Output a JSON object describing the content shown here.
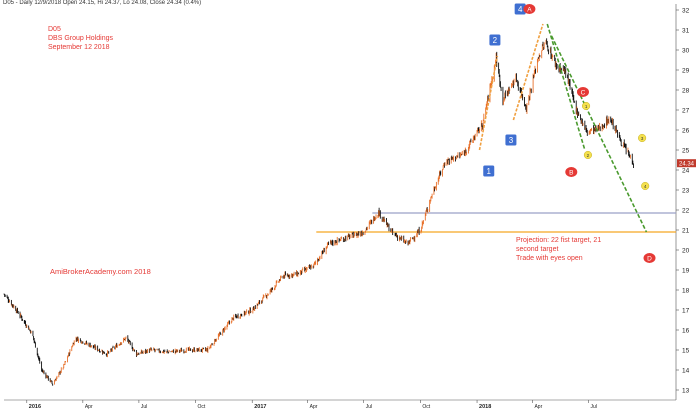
{
  "header": {
    "text": "D05 - Daily 12/9/2018 Open 24.15, Hi 24.37, Lo 24.08, Close 24.34 (0.4%)"
  },
  "title_block": {
    "line1": "D05",
    "line2": "DBS Group Holdings",
    "line3": "September 12 2018"
  },
  "watermark": "AmiBrokerAcademy.com  2018",
  "projection": {
    "line1": "Projection: 22 fist target, 21",
    "line2": "second target",
    "line3": "Trade with eyes open"
  },
  "last_price_badge": "24.34",
  "colors": {
    "up": "#e8702a",
    "down": "#111111",
    "marker_red": "#e53935",
    "marker_blue": "#3f6fd1",
    "marker_yellow": "#f4e04d",
    "orange_line": "#f5a623",
    "blue_line": "#9aa0c8",
    "green_dash": "#4a9a2e",
    "orange_dash": "#f0a040"
  },
  "chart_data": {
    "type": "candlestick",
    "y_axis": {
      "min": 12.5,
      "max": 32.3,
      "ticks": [
        13,
        14,
        15,
        16,
        17,
        18,
        19,
        20,
        21,
        22,
        23,
        24,
        25,
        26,
        27,
        28,
        29,
        30,
        31,
        32
      ],
      "position": "right"
    },
    "x_axis": {
      "range": [
        "2015-11-25",
        "2018-11-20"
      ],
      "ticks": [
        {
          "date": "2016-01-01",
          "label": "2016",
          "bold": true
        },
        {
          "date": "2016-04-01",
          "label": "Apr",
          "bold": false
        },
        {
          "date": "2016-07-01",
          "label": "Jul",
          "bold": false
        },
        {
          "date": "2016-10-01",
          "label": "Oct",
          "bold": false
        },
        {
          "date": "2017-01-01",
          "label": "2017",
          "bold": true
        },
        {
          "date": "2017-04-01",
          "label": "Apr",
          "bold": false
        },
        {
          "date": "2017-07-01",
          "label": "Jul",
          "bold": false
        },
        {
          "date": "2017-10-01",
          "label": "Oct",
          "bold": false
        },
        {
          "date": "2018-01-01",
          "label": "2018",
          "bold": true
        },
        {
          "date": "2018-04-01",
          "label": "Apr",
          "bold": false
        },
        {
          "date": "2018-07-01",
          "label": "Jul",
          "bold": false
        }
      ]
    },
    "price_path": [
      {
        "date": "2015-11-25",
        "close": 17.8
      },
      {
        "date": "2015-12-15",
        "close": 17.0
      },
      {
        "date": "2016-01-10",
        "close": 15.8
      },
      {
        "date": "2016-01-25",
        "close": 14.0
      },
      {
        "date": "2016-02-12",
        "close": 13.3
      },
      {
        "date": "2016-03-01",
        "close": 14.2
      },
      {
        "date": "2016-03-20",
        "close": 15.6
      },
      {
        "date": "2016-04-15",
        "close": 15.2
      },
      {
        "date": "2016-05-10",
        "close": 14.8
      },
      {
        "date": "2016-06-10",
        "close": 15.6
      },
      {
        "date": "2016-06-27",
        "close": 14.8
      },
      {
        "date": "2016-07-20",
        "close": 15.0
      },
      {
        "date": "2016-08-15",
        "close": 14.9
      },
      {
        "date": "2016-09-20",
        "close": 15.0
      },
      {
        "date": "2016-10-20",
        "close": 15.0
      },
      {
        "date": "2016-11-10",
        "close": 15.8
      },
      {
        "date": "2016-12-01",
        "close": 16.6
      },
      {
        "date": "2017-01-01",
        "close": 17.0
      },
      {
        "date": "2017-02-01",
        "close": 18.0
      },
      {
        "date": "2017-02-20",
        "close": 18.7
      },
      {
        "date": "2017-03-15",
        "close": 18.8
      },
      {
        "date": "2017-04-10",
        "close": 19.2
      },
      {
        "date": "2017-05-05",
        "close": 20.3
      },
      {
        "date": "2017-06-01",
        "close": 20.6
      },
      {
        "date": "2017-07-01",
        "close": 20.9
      },
      {
        "date": "2017-07-25",
        "close": 21.9
      },
      {
        "date": "2017-08-15",
        "close": 20.9
      },
      {
        "date": "2017-09-10",
        "close": 20.3
      },
      {
        "date": "2017-10-01",
        "close": 21.0
      },
      {
        "date": "2017-10-20",
        "close": 22.8
      },
      {
        "date": "2017-11-10",
        "close": 24.4
      },
      {
        "date": "2017-12-10",
        "close": 24.8
      },
      {
        "date": "2018-01-10",
        "close": 26.3
      },
      {
        "date": "2018-02-01",
        "close": 29.6
      },
      {
        "date": "2018-02-12",
        "close": 27.5
      },
      {
        "date": "2018-03-05",
        "close": 28.6
      },
      {
        "date": "2018-03-22",
        "close": 27.1
      },
      {
        "date": "2018-04-10",
        "close": 29.6
      },
      {
        "date": "2018-04-22",
        "close": 30.4
      },
      {
        "date": "2018-05-10",
        "close": 29.2
      },
      {
        "date": "2018-05-25",
        "close": 28.9
      },
      {
        "date": "2018-06-10",
        "close": 27.1
      },
      {
        "date": "2018-06-28",
        "close": 25.9
      },
      {
        "date": "2018-07-20",
        "close": 26.1
      },
      {
        "date": "2018-08-05",
        "close": 26.6
      },
      {
        "date": "2018-08-20",
        "close": 25.6
      },
      {
        "date": "2018-09-12",
        "close": 24.34
      }
    ],
    "horizontal_lines": [
      {
        "name": "orange-support",
        "value": 20.9,
        "start": "2017-04-15",
        "end": "2018-11-20"
      },
      {
        "name": "blue-resistance",
        "value": 21.85,
        "start": "2017-07-15",
        "end": "2018-11-20"
      }
    ],
    "trend_lines": [
      {
        "name": "orange-dash-1",
        "start": {
          "date": "2018-01-05",
          "value": 25.0
        },
        "end": {
          "date": "2018-02-03",
          "value": 29.7
        }
      },
      {
        "name": "orange-dash-2",
        "start": {
          "date": "2018-03-01",
          "value": 26.5
        },
        "end": {
          "date": "2018-04-18",
          "value": 31.3
        }
      },
      {
        "name": "green-dash-1",
        "start": {
          "date": "2018-04-25",
          "value": 31.3
        },
        "end": {
          "date": "2018-06-25",
          "value": 25.0
        }
      },
      {
        "name": "green-dash-2",
        "start": {
          "date": "2018-05-02",
          "value": 30.7
        },
        "end": {
          "date": "2018-10-03",
          "value": 20.9
        }
      }
    ],
    "markers": [
      {
        "label": "1",
        "shape": "square",
        "color": "blue",
        "date": "2018-01-20",
        "value": 23.95
      },
      {
        "label": "2",
        "shape": "square",
        "color": "blue",
        "date": "2018-01-30",
        "value": 30.5
      },
      {
        "label": "3",
        "shape": "square",
        "color": "blue",
        "date": "2018-02-25",
        "value": 25.5
      },
      {
        "label": "4",
        "shape": "square",
        "color": "blue",
        "date": "2018-03-12",
        "value": 32.05
      },
      {
        "label": "A",
        "shape": "circle",
        "color": "red",
        "date": "2018-03-27",
        "value": 32.05
      },
      {
        "label": "B",
        "shape": "circle",
        "color": "red",
        "date": "2018-06-03",
        "value": 23.9
      },
      {
        "label": "C",
        "shape": "circle",
        "color": "red",
        "date": "2018-06-22",
        "value": 27.9
      },
      {
        "label": "D",
        "shape": "circle",
        "color": "red",
        "date": "2018-10-08",
        "value": 19.6
      },
      {
        "label": "1",
        "shape": "circle",
        "color": "yellow",
        "date": "2018-06-27",
        "value": 27.2
      },
      {
        "label": "2",
        "shape": "circle",
        "color": "yellow",
        "date": "2018-06-30",
        "value": 24.75
      },
      {
        "label": "3",
        "shape": "circle",
        "color": "yellow",
        "date": "2018-09-26",
        "value": 25.6
      },
      {
        "label": "4",
        "shape": "circle",
        "color": "yellow",
        "date": "2018-10-01",
        "value": 23.2
      }
    ]
  }
}
